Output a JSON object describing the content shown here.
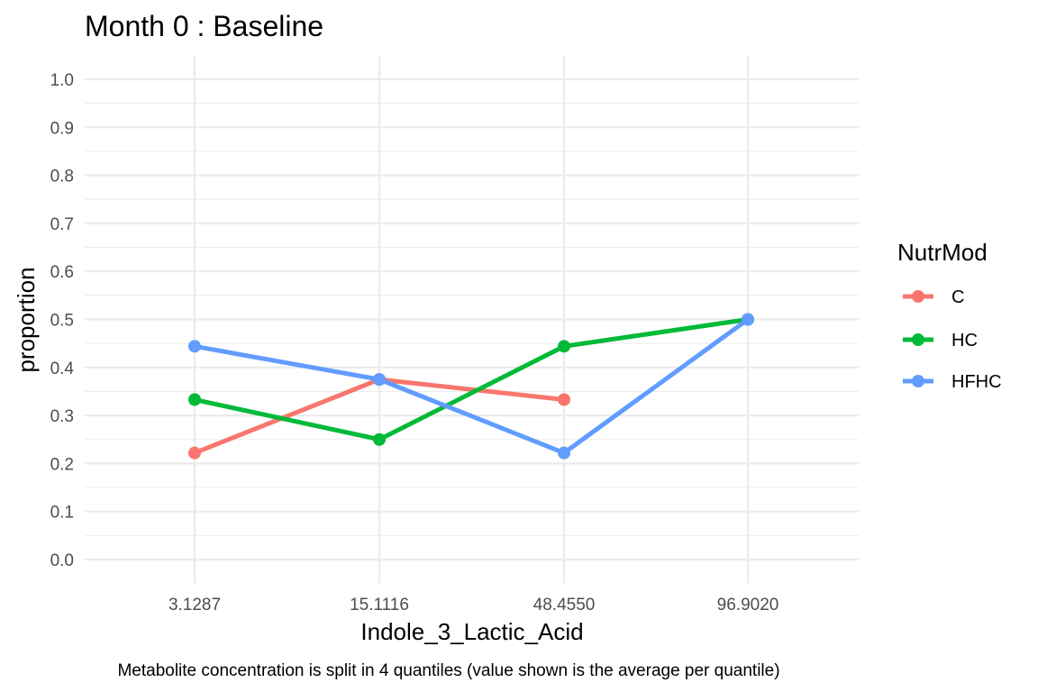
{
  "chart_data": {
    "type": "line",
    "title": "Month 0 : Baseline",
    "xlabel": "Indole_3_Lactic_Acid",
    "ylabel": "proportion",
    "caption": "Metabolite concentration is split in 4 quantiles (value shown is the average per quantile)",
    "categories": [
      "3.1287",
      "15.1116",
      "48.4550",
      "96.9020"
    ],
    "ylim": [
      0.0,
      1.0
    ],
    "yticks": [
      "0.0",
      "0.1",
      "0.2",
      "0.3",
      "0.4",
      "0.5",
      "0.6",
      "0.7",
      "0.8",
      "0.9",
      "1.0"
    ],
    "grid": true,
    "legend": {
      "title": "NutrMod",
      "position": "right"
    },
    "series": [
      {
        "name": "C",
        "color": "#F8766D",
        "values": [
          0.222,
          0.375,
          0.333,
          null
        ]
      },
      {
        "name": "HC",
        "color": "#00BA38",
        "values": [
          0.333,
          0.25,
          0.444,
          0.5
        ]
      },
      {
        "name": "HFHC",
        "color": "#619CFF",
        "values": [
          0.444,
          0.375,
          0.222,
          0.5
        ]
      }
    ]
  }
}
